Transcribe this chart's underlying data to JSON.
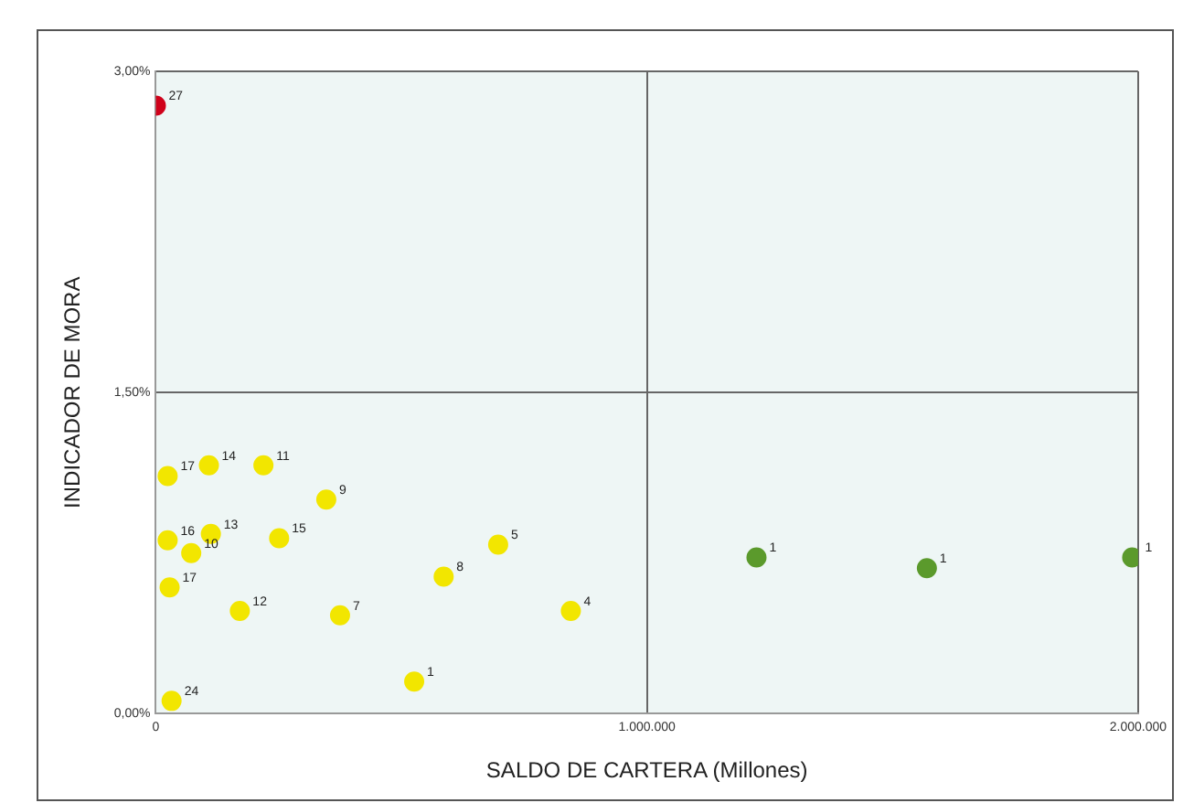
{
  "chart_data": {
    "type": "scatter",
    "xlabel": "SALDO DE CARTERA (Millones)",
    "ylabel": "INDICADOR DE MORA",
    "xlim": [
      0,
      2000000
    ],
    "ylim": [
      0,
      3
    ],
    "xticks": [
      {
        "value": 0,
        "label": "0"
      },
      {
        "value": 1000000,
        "label": "1.000.000"
      },
      {
        "value": 2000000,
        "label": "2.000.000"
      }
    ],
    "yticks": [
      {
        "value": 0,
        "label": "0,00%"
      },
      {
        "value": 1.5,
        "label": "1,50%"
      },
      {
        "value": 3,
        "label": "3,00%"
      }
    ],
    "grid": true,
    "marker": "circle",
    "series": [
      {
        "color": "#d0021b",
        "x": [
          0
        ],
        "values": [
          2.84
        ]
      },
      {
        "color": "#f2e600",
        "x": [
          24000,
          108000,
          219000,
          347000,
          24000,
          112000,
          72000,
          251000,
          28000,
          171000,
          375000,
          526000,
          32000,
          586000,
          697000,
          845000
        ],
        "values": [
          1.11,
          1.16,
          1.16,
          1.0,
          0.81,
          0.84,
          0.75,
          0.82,
          0.59,
          0.48,
          0.46,
          0.15,
          0.06,
          0.64,
          0.79,
          0.48
        ]
      },
      {
        "color": "#5b9a2c",
        "x": [
          1223000,
          1570000,
          1988000
        ],
        "values": [
          0.73,
          0.68,
          0.73
        ]
      }
    ],
    "annotations": [
      {
        "text": "27",
        "x": 0,
        "y": 2.84
      },
      {
        "text": "17",
        "x": 24000,
        "y": 1.11
      },
      {
        "text": "14",
        "x": 108000,
        "y": 1.16
      },
      {
        "text": "11",
        "x": 219000,
        "y": 1.16
      },
      {
        "text": "9",
        "x": 347000,
        "y": 1.0
      },
      {
        "text": "16",
        "x": 24000,
        "y": 0.81
      },
      {
        "text": "13",
        "x": 112000,
        "y": 0.84
      },
      {
        "text": "10",
        "x": 72000,
        "y": 0.75
      },
      {
        "text": "15",
        "x": 251000,
        "y": 0.82
      },
      {
        "text": "17",
        "x": 28000,
        "y": 0.59
      },
      {
        "text": "12",
        "x": 171000,
        "y": 0.48
      },
      {
        "text": "7",
        "x": 375000,
        "y": 0.46
      },
      {
        "text": "1",
        "x": 526000,
        "y": 0.15
      },
      {
        "text": "24",
        "x": 32000,
        "y": 0.06
      },
      {
        "text": "8",
        "x": 586000,
        "y": 0.64
      },
      {
        "text": "5",
        "x": 697000,
        "y": 0.79
      },
      {
        "text": "4",
        "x": 845000,
        "y": 0.48
      },
      {
        "text": "1",
        "x": 1223000,
        "y": 0.73
      },
      {
        "text": "1",
        "x": 1570000,
        "y": 0.68
      },
      {
        "text": "1",
        "x": 1988000,
        "y": 0.73
      }
    ]
  }
}
